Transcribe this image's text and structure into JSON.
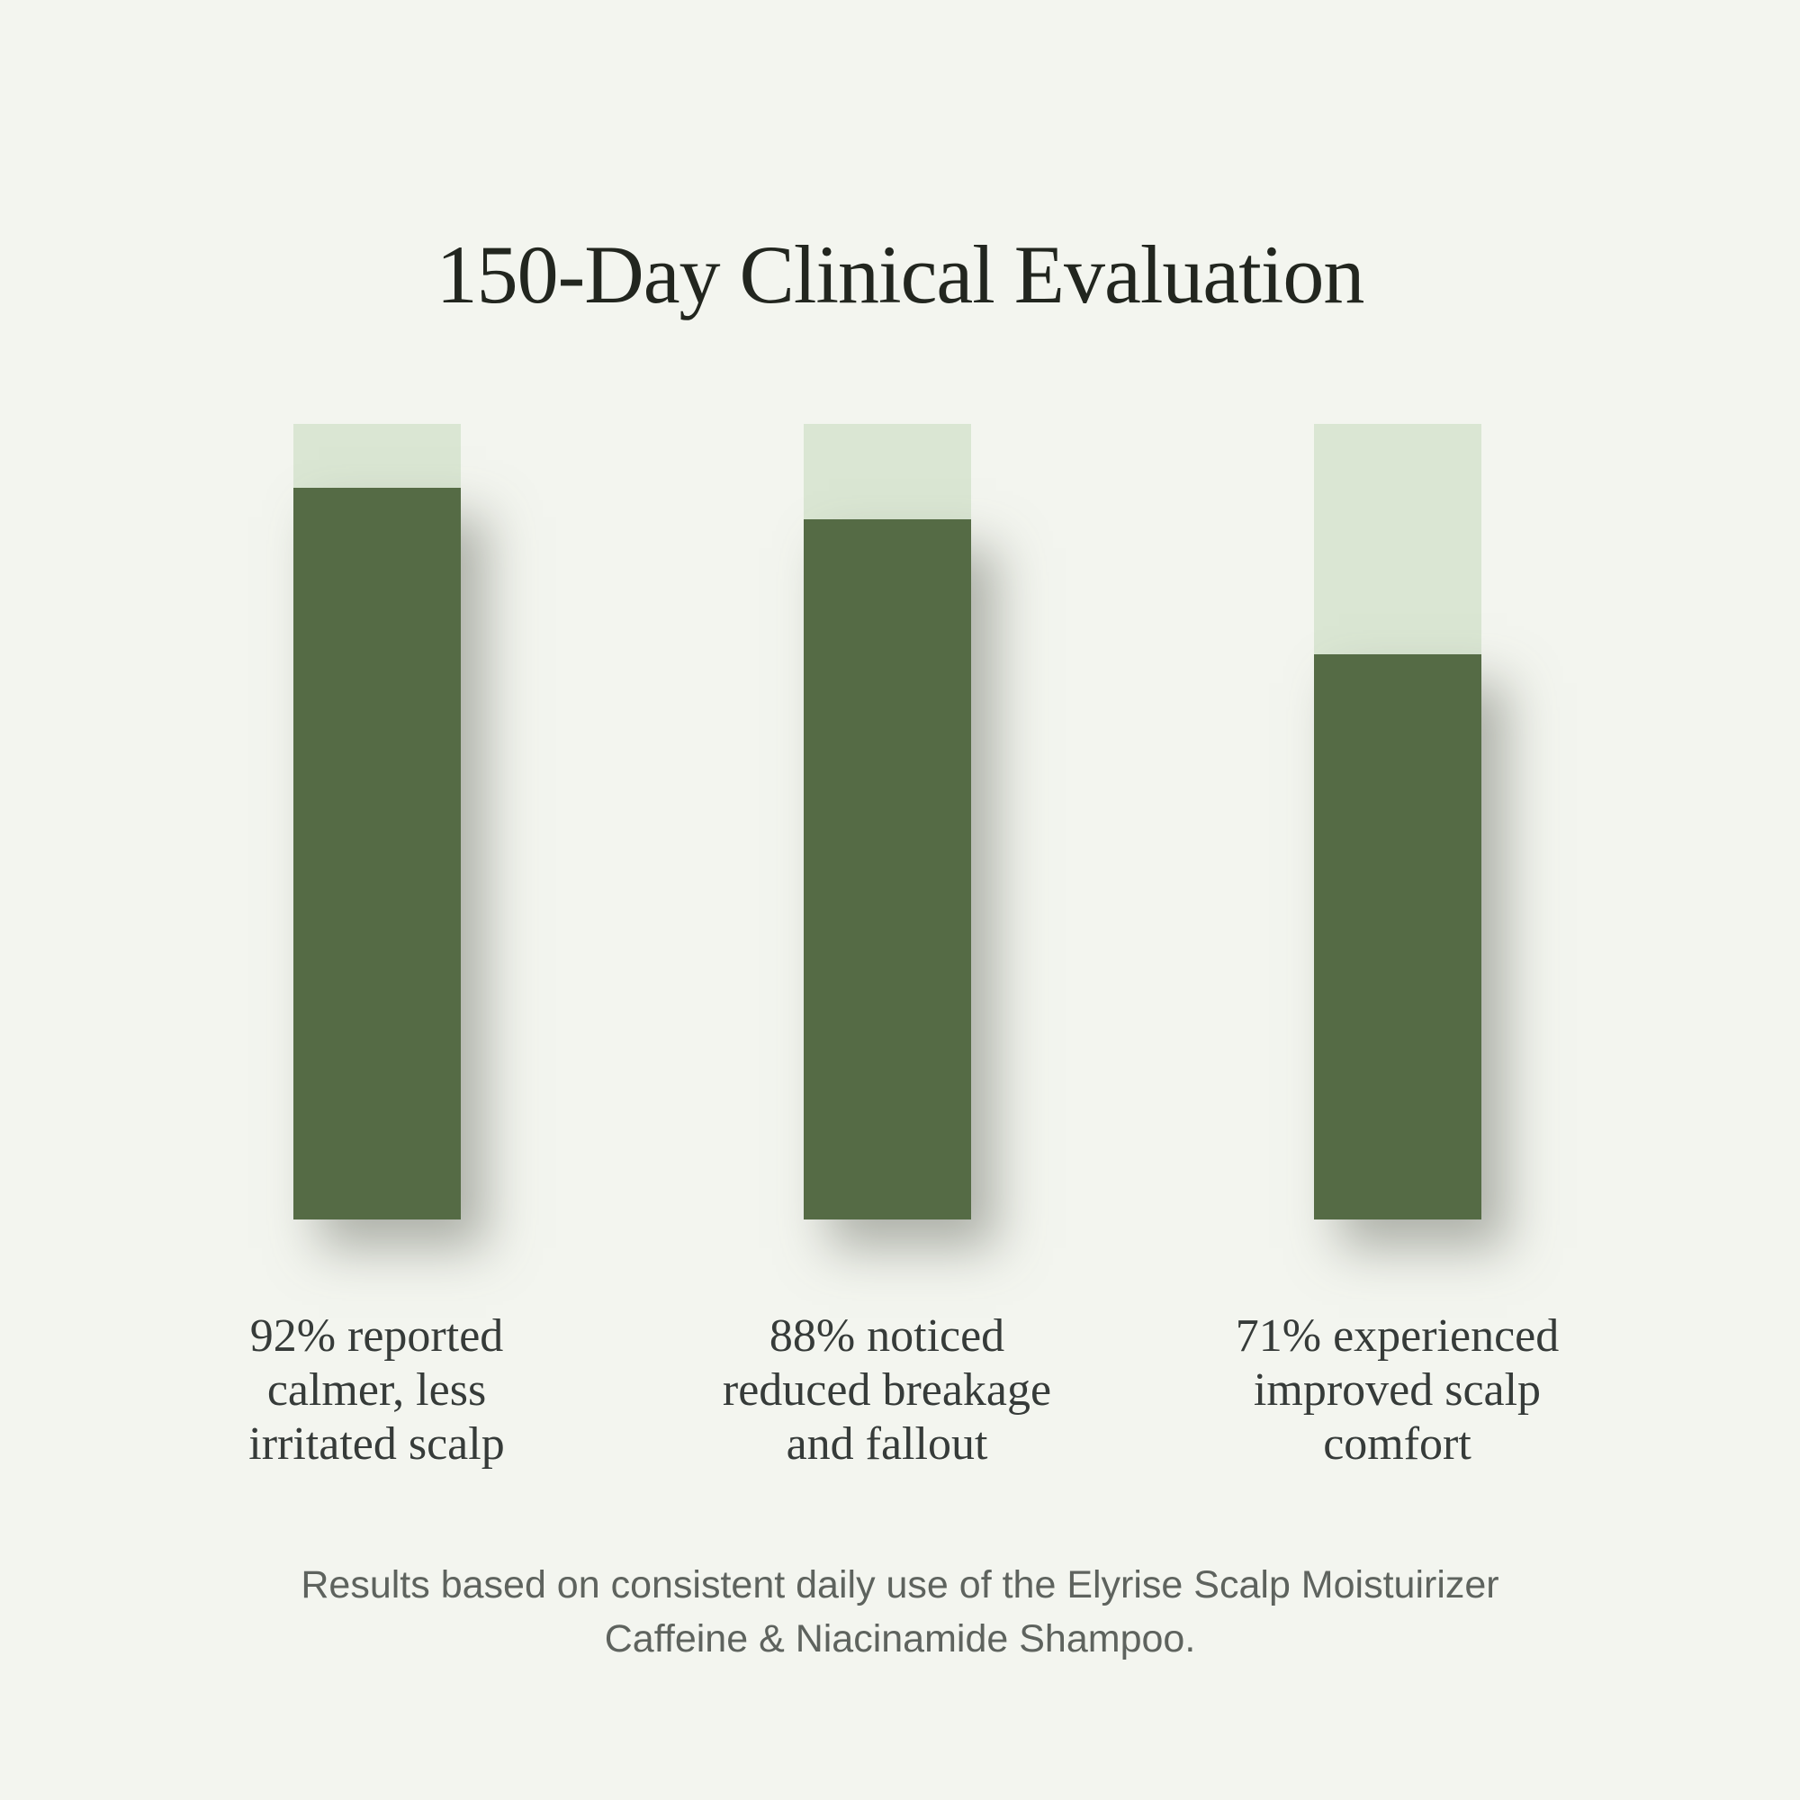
{
  "title": "150-Day Clinical Evaluation",
  "chart_data": {
    "type": "bar",
    "title": "150-Day Clinical Evaluation",
    "categories": [
      "92% reported calmer, less irritated scalp",
      "88% noticed reduced breakage and fallout",
      "71% experienced improved scalp comfort"
    ],
    "values": [
      92,
      88,
      71
    ],
    "unit": "%",
    "ylim": [
      0,
      100
    ],
    "grid": false,
    "legend": "none",
    "orientation": "vertical",
    "annotation": "Results based on consistent daily use of the Elyrise Scalp Moistuirizer Caffeine & Niacinamide Shampoo."
  },
  "bars": [
    {
      "value": 92,
      "label_lines": [
        "92% reported",
        "calmer, less",
        "irritated scalp"
      ]
    },
    {
      "value": 88,
      "label_lines": [
        "88% noticed",
        "reduced breakage",
        "and fallout"
      ]
    },
    {
      "value": 71,
      "label_lines": [
        "71% experienced",
        "improved scalp",
        "comfort"
      ]
    }
  ],
  "footer": {
    "line1": "Results based on consistent daily use of the Elyrise Scalp Moistuirizer",
    "line2": "Caffeine & Niacinamide Shampoo."
  },
  "colors": {
    "background": "#f3f5ef",
    "bar_track": "#dae6d3",
    "bar_fill": "#556b45",
    "title_text": "#22261f",
    "label_text": "#363b39",
    "footer_text": "#5e635e",
    "shadow": "rgba(105,110,100,0.5)"
  }
}
